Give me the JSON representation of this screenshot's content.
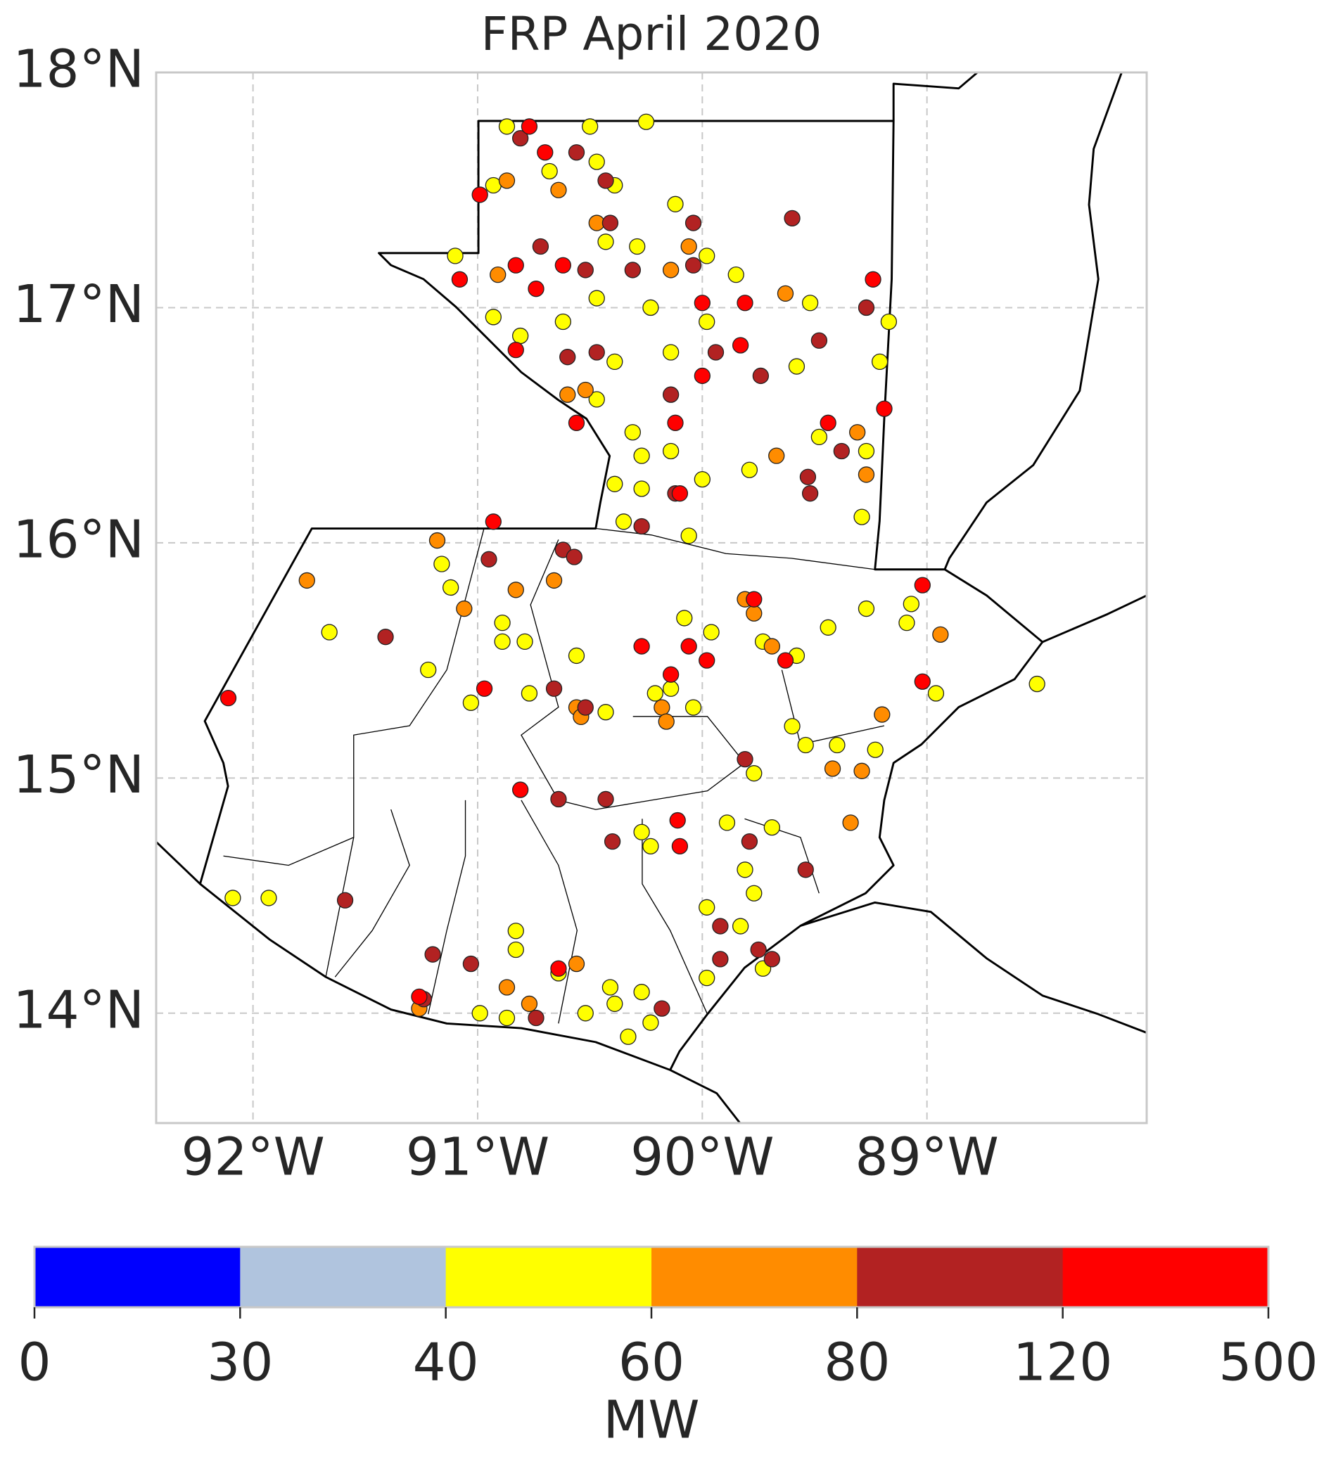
{
  "chart_data": {
    "type": "scatter",
    "title": "FRP April 2020",
    "xlim": [
      -92.431,
      -88.022
    ],
    "ylim": [
      13.533,
      18.0
    ],
    "xticks": [
      {
        "value": -92,
        "label": "92°W"
      },
      {
        "value": -91,
        "label": "91°W"
      },
      {
        "value": -90,
        "label": "90°W"
      },
      {
        "value": -89,
        "label": "89°W"
      }
    ],
    "yticks": [
      {
        "value": 14,
        "label": "14°N"
      },
      {
        "value": 15,
        "label": "15°N"
      },
      {
        "value": 16,
        "label": "16°N"
      },
      {
        "value": 17,
        "label": "17°N"
      },
      {
        "value": 18,
        "label": "18°N"
      }
    ],
    "grid": true,
    "series": [
      {
        "color": "#ffff00",
        "x": [
          -90.87,
          -90.5,
          -90.25,
          -90.68,
          -90.47,
          -90.93,
          -90.39,
          -90.12,
          -90.43,
          -90.29,
          -89.98,
          -89.85,
          -91.1,
          -90.93,
          -90.62,
          -90.47,
          -90.23,
          -89.98,
          -89.52,
          -89.17,
          -90.81,
          -90.39,
          -90.14,
          -89.58,
          -89.21,
          -90.47,
          -90.31,
          -90.27,
          -90.14,
          -89.79,
          -89.48,
          -89.27,
          -89.29,
          -90.0,
          -90.39,
          -90.27,
          -90.06,
          -90.35,
          -91.16,
          -91.12,
          -91.66,
          -90.89,
          -91.22,
          -90.89,
          -90.79,
          -90.56,
          -90.08,
          -89.96,
          -90.21,
          -90.14,
          -90.04,
          -90.43,
          -91.03,
          -90.77,
          -89.73,
          -89.58,
          -89.44,
          -89.27,
          -89.09,
          -89.07,
          -88.96,
          -88.51,
          -89.6,
          -89.54,
          -89.4,
          -89.23,
          -89.77,
          -90.27,
          -90.23,
          -89.89,
          -89.69,
          -89.81,
          -89.98,
          -89.83,
          -89.77,
          -90.83,
          -90.83,
          -92.09,
          -91.93,
          -90.64,
          -90.41,
          -90.27,
          -89.98,
          -89.73,
          -90.39,
          -90.87,
          -90.52,
          -90.33,
          -90.23,
          -90.99
        ],
        "y": [
          17.77,
          17.77,
          17.79,
          17.58,
          17.62,
          17.52,
          17.52,
          17.44,
          17.28,
          17.26,
          17.22,
          17.14,
          17.22,
          16.96,
          16.94,
          17.04,
          17.0,
          16.94,
          17.02,
          16.94,
          16.88,
          16.77,
          16.81,
          16.75,
          16.77,
          16.61,
          16.47,
          16.37,
          16.39,
          16.31,
          16.45,
          16.39,
          16.11,
          16.27,
          16.25,
          16.23,
          16.03,
          16.09,
          15.91,
          15.81,
          15.62,
          15.66,
          15.46,
          15.58,
          15.58,
          15.52,
          15.68,
          15.62,
          15.36,
          15.38,
          15.3,
          15.28,
          15.32,
          15.36,
          15.58,
          15.52,
          15.64,
          15.72,
          15.66,
          15.74,
          15.36,
          15.4,
          15.22,
          15.14,
          15.14,
          15.12,
          15.02,
          14.77,
          14.71,
          14.81,
          14.79,
          14.61,
          14.45,
          14.37,
          14.51,
          14.35,
          14.27,
          14.49,
          14.49,
          14.17,
          14.11,
          14.09,
          14.15,
          14.19,
          14.04,
          13.98,
          14.0,
          13.9,
          13.96,
          14.0
        ]
      },
      {
        "color": "#ff8c00",
        "x": [
          -90.87,
          -90.64,
          -90.47,
          -90.91,
          -90.06,
          -90.14,
          -90.6,
          -90.52,
          -89.67,
          -89.31,
          -89.27,
          -89.63,
          -91.18,
          -91.76,
          -90.83,
          -90.66,
          -90.56,
          -90.54,
          -91.06,
          -89.81,
          -89.77,
          -89.69,
          -90.18,
          -90.16,
          -89.42,
          -89.29,
          -89.34,
          -90.56,
          -91.26,
          -90.77,
          -90.87,
          -88.94,
          -89.2
        ],
        "y": [
          17.54,
          17.5,
          17.36,
          17.14,
          17.26,
          17.16,
          16.63,
          16.65,
          16.37,
          16.47,
          16.29,
          17.06,
          16.01,
          15.84,
          15.8,
          15.84,
          15.3,
          15.26,
          15.72,
          15.76,
          15.7,
          15.56,
          15.3,
          15.24,
          15.04,
          15.03,
          14.81,
          14.21,
          14.02,
          14.04,
          14.11,
          15.61,
          15.27
        ]
      },
      {
        "color": "#b22222",
        "x": [
          -90.81,
          -90.56,
          -90.43,
          -90.41,
          -90.72,
          -90.52,
          -90.31,
          -90.04,
          -90.04,
          -89.6,
          -90.47,
          -90.6,
          -90.14,
          -89.94,
          -89.74,
          -89.27,
          -89.48,
          -89.38,
          -89.53,
          -89.52,
          -90.12,
          -90.27,
          -90.62,
          -90.57,
          -90.95,
          -91.41,
          -90.66,
          -90.52,
          -90.64,
          -90.43,
          -90.4,
          -89.81,
          -89.79,
          -89.54,
          -89.92,
          -89.92,
          -89.75,
          -89.69,
          -91.59,
          -91.2,
          -91.03,
          -90.74,
          -90.18,
          -91.24
        ],
        "y": [
          17.72,
          17.66,
          17.54,
          17.36,
          17.26,
          17.16,
          17.16,
          17.36,
          17.18,
          17.38,
          16.81,
          16.79,
          16.63,
          16.81,
          16.71,
          17.0,
          16.86,
          16.39,
          16.28,
          16.21,
          16.21,
          16.07,
          15.97,
          15.94,
          15.93,
          15.6,
          15.38,
          15.3,
          14.91,
          14.91,
          14.73,
          15.08,
          14.73,
          14.61,
          14.37,
          14.23,
          14.27,
          14.23,
          14.48,
          14.25,
          14.21,
          13.98,
          14.02,
          14.06
        ]
      },
      {
        "color": "#ff0000",
        "x": [
          -90.77,
          -90.7,
          -90.99,
          -90.83,
          -90.62,
          -90.74,
          -91.08,
          -90.83,
          -90.0,
          -89.81,
          -89.24,
          -90.0,
          -89.83,
          -89.44,
          -89.19,
          -90.12,
          -90.56,
          -90.1,
          -90.93,
          -89.77,
          -89.63,
          -90.27,
          -90.06,
          -89.98,
          -90.14,
          -89.02,
          -89.02,
          -90.97,
          -90.81,
          -90.11,
          -90.1,
          -92.11,
          -90.64,
          -91.26
        ],
        "y": [
          17.77,
          17.66,
          17.48,
          17.18,
          17.18,
          17.08,
          17.12,
          16.82,
          17.02,
          17.02,
          17.12,
          16.71,
          16.84,
          16.51,
          16.57,
          16.51,
          16.51,
          16.21,
          16.09,
          15.76,
          15.5,
          15.56,
          15.56,
          15.5,
          15.44,
          15.82,
          15.41,
          15.38,
          14.95,
          14.82,
          14.71,
          15.34,
          14.19,
          14.07
        ]
      }
    ],
    "colorbar": {
      "label": "MW",
      "boundaries": [
        0,
        30,
        40,
        60,
        80,
        120,
        500
      ],
      "colors": [
        "#0000ff",
        "#b0c4de",
        "#ffff00",
        "#ff8c00",
        "#b22222",
        "#ff0000"
      ]
    }
  }
}
